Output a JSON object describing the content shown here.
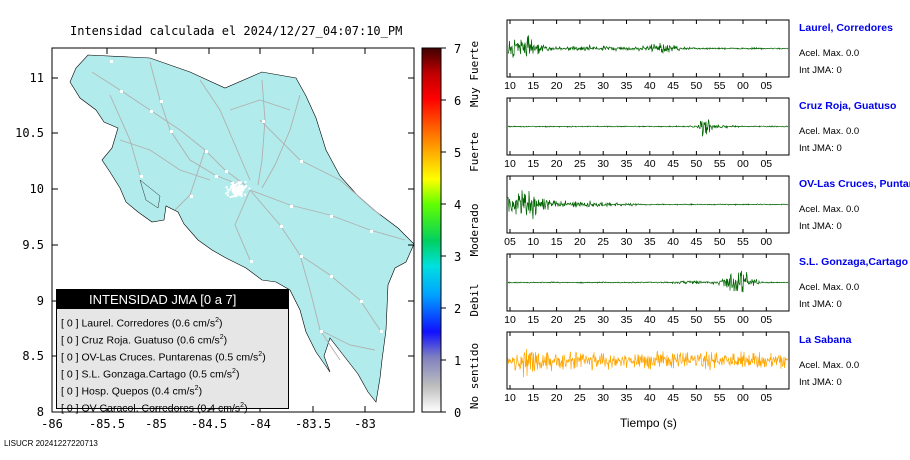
{
  "map": {
    "title": "Intensidad calculada el 2024/12/27_04:07:10_PM",
    "x_ticks": [
      "-86",
      "-85.5",
      "-85",
      "-84.5",
      "-84",
      "-83.5",
      "-83"
    ],
    "y_ticks": [
      "11",
      "10.5",
      "10",
      "9.5",
      "9",
      "8.5",
      "8"
    ],
    "land_color": "#b2ebeb"
  },
  "scale": {
    "numbers": [
      "7",
      "6",
      "5",
      "4",
      "3",
      "2",
      "1",
      "0"
    ],
    "labels": [
      "Muy Fuerte",
      "Fuerte",
      "Moderado",
      "Debil",
      "No sentido"
    ]
  },
  "legend": {
    "title": "INTENSIDAD JMA [0 a 7]",
    "unit": "cm/s",
    "unit_exp": "2",
    "rows": [
      {
        "code": "[ 0 ]",
        "name": "Laurel. Corredores",
        "value": "(0.6"
      },
      {
        "code": "[ 0 ]",
        "name": "Cruz Roja. Guatuso",
        "value": "(0.6"
      },
      {
        "code": "[ 0 ]",
        "name": "OV-Las Cruces. Puntarenas",
        "value": "(0.5"
      },
      {
        "code": "[ 0 ]",
        "name": "S.L. Gonzaga.Cartago",
        "value": "(0.5"
      },
      {
        "code": "[ 0 ]",
        "name": "Hosp. Quepos",
        "value": "(0.4"
      },
      {
        "code": "[ 0 ]",
        "name": "OV-Caracol. Corredores",
        "value": "(0.4"
      }
    ]
  },
  "stations": [
    {
      "name": "Laurel, Corredores",
      "acel": "Acel. Max. 0.0",
      "int": "Int JMA: 0",
      "ticks": [
        "10",
        "15",
        "20",
        "25",
        "30",
        "35",
        "40",
        "45",
        "50",
        "55",
        "00",
        "05"
      ],
      "color": "#006400"
    },
    {
      "name": "Cruz Roja, Guatuso",
      "acel": "Acel. Max. 0.0",
      "int": "Int JMA: 0",
      "ticks": [
        "10",
        "15",
        "20",
        "25",
        "30",
        "35",
        "40",
        "45",
        "50",
        "55",
        "00",
        "05"
      ],
      "color": "#006400"
    },
    {
      "name": "OV-Las Cruces, Puntar",
      "acel": "Acel. Max. 0.0",
      "int": "Int JMA: 0",
      "ticks": [
        "05",
        "10",
        "15",
        "20",
        "25",
        "30",
        "35",
        "40",
        "45",
        "50",
        "55",
        "00"
      ],
      "color": "#006400"
    },
    {
      "name": "S.L. Gonzaga,Cartago",
      "acel": "Acel. Max. 0.0",
      "int": "Int JMA: 0",
      "ticks": [
        "10",
        "15",
        "20",
        "25",
        "30",
        "35",
        "40",
        "45",
        "50",
        "55",
        "00",
        "05"
      ],
      "color": "#006400"
    },
    {
      "name": "La Sabana",
      "acel": "Acel. Max. 0.0",
      "int": "Int JMA: 0",
      "ticks": [
        "10",
        "15",
        "20",
        "25",
        "30",
        "35",
        "40",
        "45",
        "50",
        "55",
        "00",
        "05"
      ],
      "color": "#ffa500"
    }
  ],
  "traces_xlabel": "Tiempo (s)",
  "footer": "LISUCR 20241227220713",
  "chart_data": [
    {
      "type": "map",
      "title": "Intensidad calculada el 2024/12/27_04:07:10_PM",
      "xlim": [
        -86,
        -82.6
      ],
      "ylim": [
        8,
        11.3
      ],
      "x_ticks": [
        -86,
        -85.5,
        -85,
        -84.5,
        -84,
        -83.5,
        -83
      ],
      "y_ticks": [
        8,
        8.5,
        9,
        9.5,
        10,
        10.5,
        11
      ],
      "colorbar": {
        "range": [
          0,
          7
        ],
        "labels": [
          "Muy Fuerte",
          "Fuerte",
          "Moderado",
          "Debil",
          "No sentido"
        ]
      }
    },
    {
      "type": "line",
      "xlabel": "Tiempo (s)",
      "series": [
        {
          "name": "Laurel, Corredores",
          "acel_max": 0.0,
          "int_jma": 0
        },
        {
          "name": "Cruz Roja, Guatuso",
          "acel_max": 0.0,
          "int_jma": 0
        },
        {
          "name": "OV-Las Cruces, Puntar",
          "acel_max": 0.0,
          "int_jma": 0
        },
        {
          "name": "S.L. Gonzaga,Cartago",
          "acel_max": 0.0,
          "int_jma": 0
        },
        {
          "name": "La Sabana",
          "acel_max": 0.0,
          "int_jma": 0
        }
      ]
    }
  ]
}
